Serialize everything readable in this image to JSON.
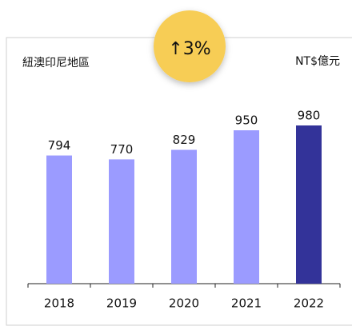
{
  "chart_data": {
    "type": "bar",
    "title": "紐澳印尼地區",
    "unit": "NT$億元",
    "annotation": "↑3%",
    "categories": [
      "2018",
      "2019",
      "2020",
      "2021",
      "2022"
    ],
    "values": [
      794,
      770,
      829,
      950,
      980
    ],
    "colors": [
      "#9b9bff",
      "#9b9bff",
      "#9b9bff",
      "#9b9bff",
      "#333399"
    ]
  }
}
